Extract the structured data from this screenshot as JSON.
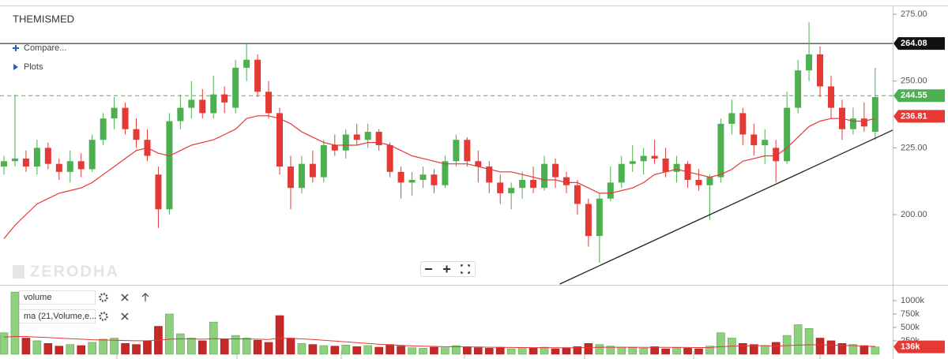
{
  "title": "THEMISMED",
  "toolbar": {
    "compare": "Compare...",
    "plots": "Plots"
  },
  "watermark": "ZERODHA",
  "chart_data": [
    {
      "type": "candlestick",
      "open": [
        218,
        220,
        221,
        218,
        225,
        219,
        216,
        220,
        217,
        228,
        236,
        240,
        232,
        228,
        215,
        202,
        235,
        240,
        243,
        238,
        245,
        240,
        255,
        258,
        246,
        238,
        218,
        210,
        219,
        214,
        226,
        224,
        230,
        228,
        231,
        226,
        216,
        212,
        213,
        215,
        211,
        220,
        228,
        220,
        218,
        212,
        208,
        210,
        213,
        210,
        219,
        214,
        211,
        204,
        192,
        206,
        212,
        219,
        220,
        222,
        221,
        216,
        219,
        213,
        211,
        214,
        234,
        238,
        230,
        226,
        225,
        220,
        240,
        254,
        260,
        248,
        240,
        232,
        236,
        231
      ],
      "high": [
        222,
        245,
        224,
        228,
        227,
        221,
        224,
        223,
        230,
        238,
        244,
        242,
        236,
        232,
        218,
        238,
        245,
        250,
        247,
        252,
        248,
        258,
        264,
        260,
        250,
        240,
        222,
        222,
        224,
        228,
        230,
        232,
        234,
        234,
        232,
        227,
        218,
        216,
        218,
        217,
        222,
        230,
        229,
        224,
        220,
        215,
        212,
        216,
        218,
        222,
        221,
        216,
        213,
        206,
        208,
        218,
        222,
        226,
        225,
        228,
        225,
        222,
        220,
        217,
        215,
        236,
        243,
        240,
        234,
        232,
        228,
        246,
        258,
        272,
        263,
        252,
        243,
        240,
        242,
        255
      ],
      "low": [
        215,
        218,
        216,
        215,
        217,
        213,
        212,
        214,
        216,
        226,
        232,
        230,
        225,
        220,
        195,
        200,
        232,
        236,
        236,
        236,
        238,
        238,
        250,
        244,
        236,
        215,
        202,
        208,
        212,
        212,
        222,
        221,
        226,
        225,
        224,
        214,
        206,
        207,
        210,
        208,
        210,
        218,
        218,
        212,
        208,
        204,
        202,
        206,
        208,
        209,
        210,
        208,
        200,
        188,
        182,
        205,
        210,
        216,
        215,
        219,
        214,
        212,
        210,
        209,
        198,
        212,
        230,
        226,
        222,
        219,
        212,
        219,
        238,
        250,
        244,
        236,
        228,
        230,
        231,
        228
      ],
      "close": [
        220,
        221,
        218,
        225,
        219,
        216,
        220,
        217,
        228,
        236,
        240,
        232,
        228,
        222,
        202,
        235,
        240,
        243,
        238,
        245,
        242,
        255,
        258,
        246,
        238,
        218,
        210,
        219,
        214,
        226,
        224,
        230,
        228,
        231,
        226,
        216,
        212,
        213,
        215,
        211,
        220,
        228,
        220,
        218,
        212,
        208,
        210,
        213,
        210,
        219,
        214,
        211,
        204,
        192,
        206,
        212,
        219,
        220,
        222,
        221,
        216,
        219,
        213,
        211,
        214,
        234,
        238,
        230,
        226,
        228,
        220,
        240,
        254,
        260,
        248,
        240,
        232,
        236,
        233,
        244
      ],
      "up_color": "#4caf50",
      "down_color": "#e53935",
      "ma": {
        "color": "#e53935",
        "values": [
          191,
          196,
          200,
          204,
          206,
          208,
          209,
          210,
          212,
          215,
          218,
          221,
          224,
          225,
          223,
          222,
          224,
          226,
          227,
          228,
          230,
          232,
          236,
          237,
          237,
          236,
          234,
          231,
          229,
          227,
          226,
          226,
          226,
          227,
          227,
          226,
          224,
          222,
          221,
          220,
          219,
          219,
          219,
          218,
          217,
          216,
          216,
          215,
          214,
          213,
          213,
          212,
          212,
          210,
          208,
          208,
          209,
          210,
          212,
          215,
          216,
          217,
          216,
          215,
          214,
          215,
          217,
          220,
          221,
          222,
          222,
          225,
          229,
          233,
          235,
          236,
          236,
          235,
          235,
          236
        ]
      },
      "trendline": {
        "x": [
          50.4,
          81.3
        ],
        "y": [
          174,
          233
        ],
        "color": "#222"
      },
      "price_lines": [
        {
          "value": 264.08,
          "color": "#111111",
          "style": "solid"
        },
        {
          "value": 244.55,
          "color": "#4caf50",
          "style": "dashed"
        },
        {
          "value": 236.81,
          "color": "#e53935",
          "style": "none"
        }
      ],
      "ylim": [
        174,
        278
      ],
      "yticks": [
        {
          "value": 200,
          "label": "200.00"
        },
        {
          "value": 225,
          "label": "225.00"
        },
        {
          "value": 250,
          "label": "250.00"
        },
        {
          "value": 275,
          "label": "275.00"
        }
      ]
    },
    {
      "type": "bar",
      "series": [
        {
          "name": "volume",
          "up_color": "#8fd07f",
          "down_color": "#c62828",
          "values": [
            400000,
            1160000,
            300000,
            250000,
            200000,
            150000,
            180000,
            160000,
            220000,
            280000,
            300000,
            200000,
            180000,
            250000,
            520000,
            750000,
            380000,
            300000,
            250000,
            600000,
            280000,
            350000,
            300000,
            260000,
            220000,
            720000,
            300000,
            200000,
            180000,
            160000,
            150000,
            170000,
            140000,
            160000,
            130000,
            180000,
            150000,
            120000,
            110000,
            130000,
            120000,
            160000,
            140000,
            120000,
            110000,
            130000,
            100000,
            120000,
            110000,
            130000,
            100000,
            120000,
            140000,
            200000,
            180000,
            150000,
            130000,
            120000,
            110000,
            140000,
            100000,
            120000,
            110000,
            100000,
            150000,
            400000,
            300000,
            200000,
            180000,
            160000,
            220000,
            350000,
            550000,
            480000,
            300000,
            250000,
            200000,
            180000,
            160000,
            136000
          ]
        },
        {
          "name": "ma (21,Volume,e...",
          "color": "#e53935",
          "values": [
            320000,
            330000,
            330000,
            320000,
            310000,
            300000,
            290000,
            280000,
            270000,
            265000,
            260000,
            255000,
            250000,
            250000,
            260000,
            280000,
            285000,
            285000,
            280000,
            290000,
            285000,
            285000,
            285000,
            280000,
            275000,
            300000,
            295000,
            285000,
            275000,
            260000,
            245000,
            230000,
            215000,
            200000,
            185000,
            175000,
            165000,
            155000,
            148000,
            145000,
            140000,
            138000,
            136000,
            134000,
            130000,
            128000,
            125000,
            123000,
            122000,
            122000,
            120000,
            120000,
            121000,
            125000,
            128000,
            130000,
            130000,
            130000,
            128000,
            128000,
            127000,
            126000,
            125000,
            124000,
            125000,
            140000,
            150000,
            155000,
            158000,
            160000,
            150000,
            160000,
            170000,
            175000,
            175000,
            170000,
            165000,
            160000,
            150000,
            145000
          ]
        }
      ],
      "last_value": {
        "value": 136000,
        "label": "136k",
        "color": "#e53935"
      },
      "ylim": [
        -90000,
        1280000
      ],
      "yticks": [
        {
          "value": 250000,
          "label": "250k"
        },
        {
          "value": 500000,
          "label": "500k"
        },
        {
          "value": 750000,
          "label": "750k"
        },
        {
          "value": 1000000,
          "label": "1000k"
        }
      ]
    }
  ]
}
